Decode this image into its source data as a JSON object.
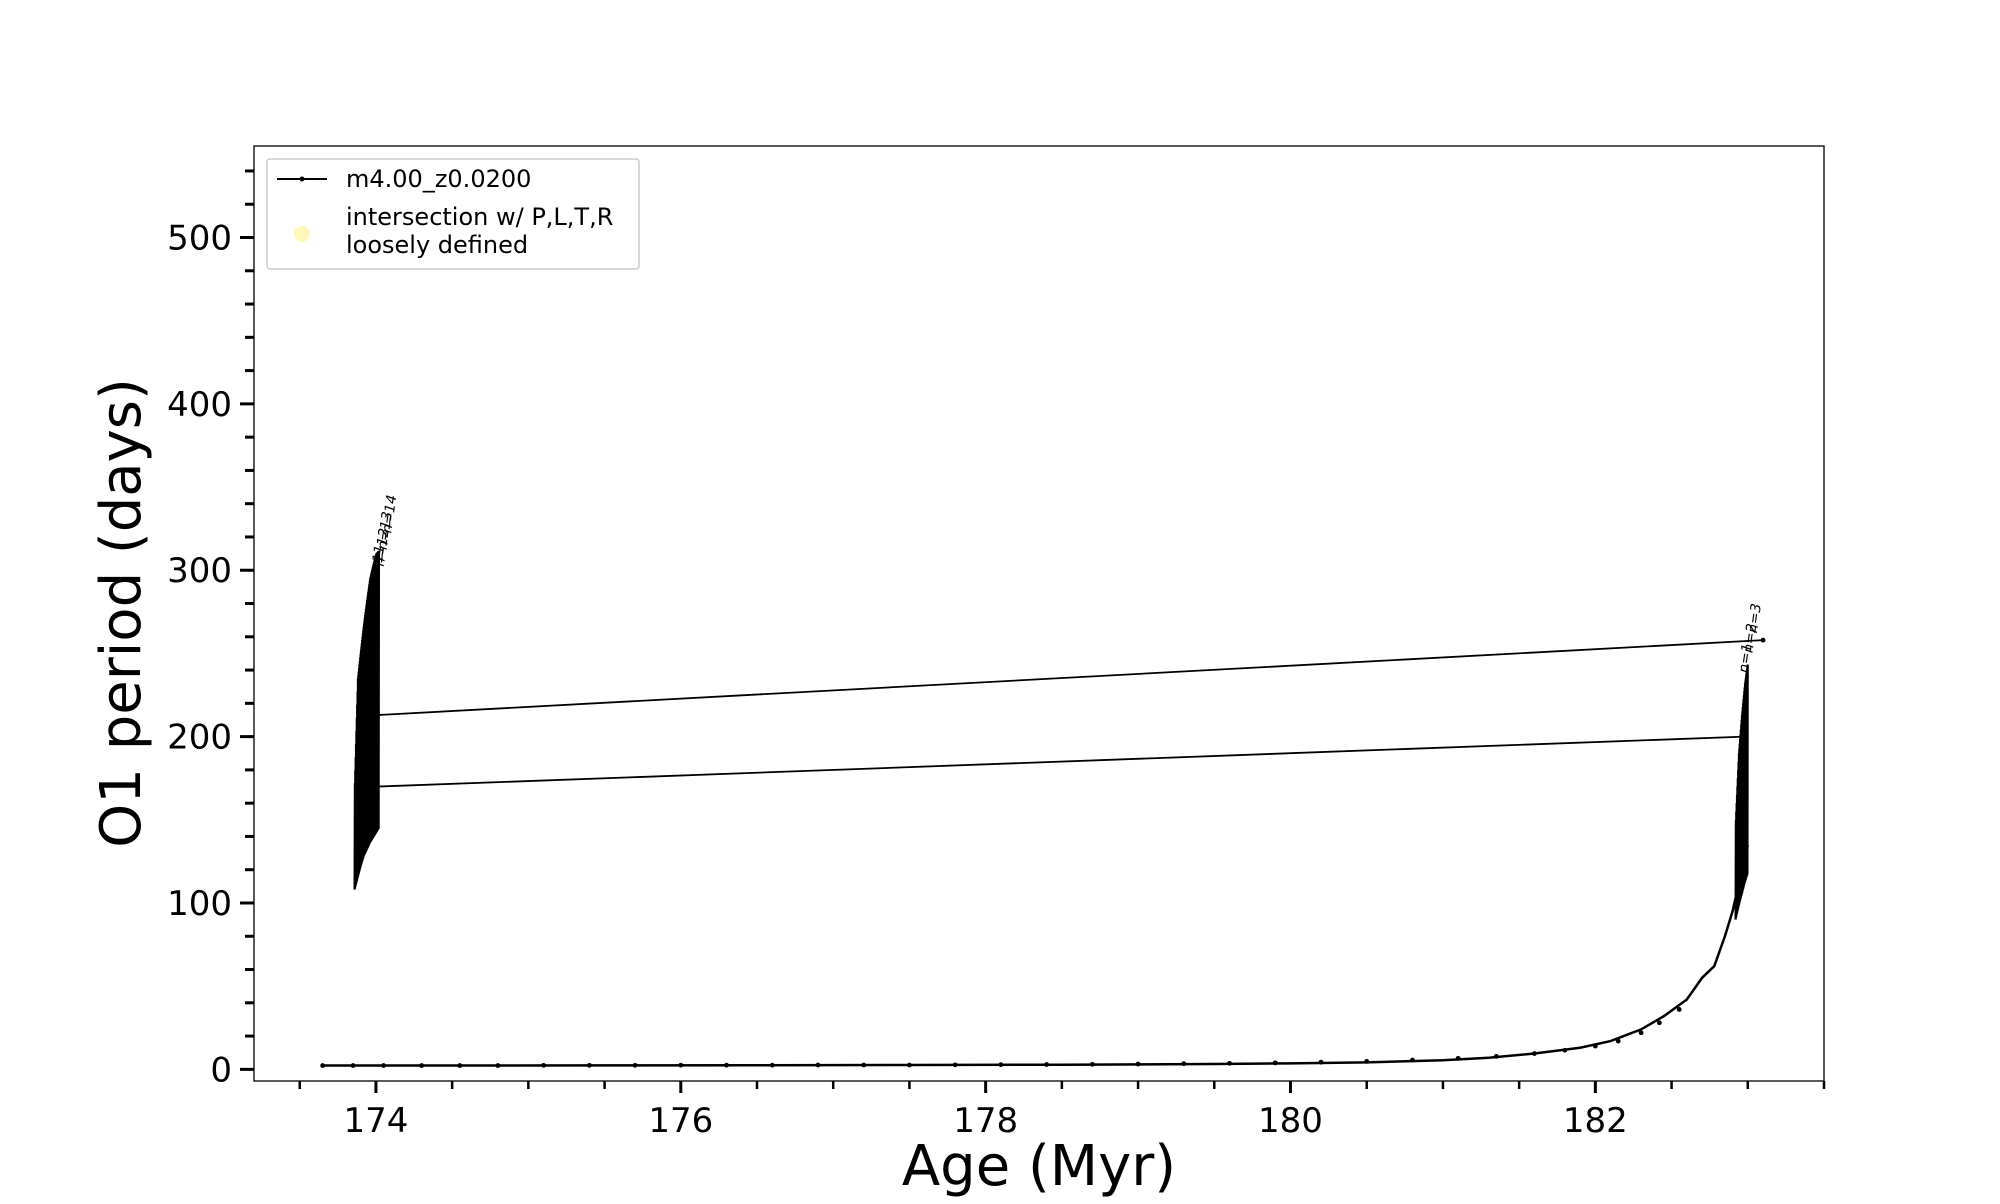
{
  "chart_data": {
    "type": "line",
    "title": "",
    "xlabel": "Age (Myr)",
    "ylabel": "O1 period (days)",
    "xlim": [
      173.2,
      183.5
    ],
    "ylim": [
      -7,
      555
    ],
    "xticks": {
      "major": [
        174,
        176,
        178,
        180,
        182
      ],
      "labels": [
        "174",
        "176",
        "178",
        "180",
        "182"
      ],
      "minor_step": 0.5
    },
    "yticks": {
      "major": [
        0,
        100,
        200,
        300,
        400,
        500
      ],
      "labels": [
        "0",
        "100",
        "200",
        "300",
        "400",
        "500"
      ],
      "minor_step": 20
    },
    "grid": false,
    "legend": {
      "placement": "upper left",
      "entries": [
        {
          "label": "m4.00_z0.0200",
          "marker": "line-dot"
        },
        {
          "label_lines": [
            "intersection w/ P,L,T,R",
            "loosely defined"
          ],
          "marker": "circle"
        }
      ]
    },
    "series": [
      {
        "name": "m4.00_z0.0200",
        "color": "#000000",
        "x": [
          173.65,
          174.5,
          175.5,
          176.5,
          177.5,
          178.5,
          179.5,
          180.0,
          180.5,
          181.0,
          181.3,
          181.6,
          181.9,
          182.1,
          182.3,
          182.45,
          182.6,
          182.7,
          182.78,
          182.85,
          182.9,
          182.95,
          183.0
        ],
        "y": [
          2.3,
          2.3,
          2.4,
          2.5,
          2.6,
          2.8,
          3.2,
          3.6,
          4.2,
          5.5,
          7.0,
          9.5,
          13,
          17,
          24,
          32,
          42,
          55,
          62,
          80,
          95,
          115,
          135
        ]
      },
      {
        "name": "oscillation-band-left",
        "x": [
          173.86,
          173.88,
          173.9,
          173.92,
          173.94,
          173.96,
          173.98,
          174.0,
          174.02
        ],
        "ylow": [
          108,
          115,
          122,
          128,
          132,
          136,
          139,
          142,
          145
        ],
        "yhigh": [
          172,
          235,
          252,
          268,
          282,
          295,
          303,
          310,
          312
        ]
      },
      {
        "name": "oscillation-band-right",
        "x": [
          182.92,
          182.94,
          182.96,
          182.98,
          183.0
        ],
        "ylow": [
          90,
          98,
          105,
          112,
          118
        ],
        "yhigh": [
          150,
          190,
          213,
          232,
          245
        ]
      },
      {
        "name": "connector-upper",
        "x": [
          174.02,
          183.1
        ],
        "y": [
          213,
          258
        ]
      },
      {
        "name": "connector-lower",
        "x": [
          174.02,
          182.98
        ],
        "y": [
          170,
          200
        ]
      }
    ],
    "marker_points": {
      "x": [
        173.65,
        173.85,
        174.05,
        174.3,
        174.55,
        174.8,
        175.1,
        175.4,
        175.7,
        176.0,
        176.3,
        176.6,
        176.9,
        177.2,
        177.5,
        177.8,
        178.1,
        178.4,
        178.7,
        179.0,
        179.3,
        179.6,
        179.9,
        180.2,
        180.5,
        180.8,
        181.1,
        181.35,
        181.6,
        181.8,
        182.0,
        182.15,
        182.3,
        182.42,
        182.55,
        183.1
      ],
      "y": [
        2.3,
        2.3,
        2.3,
        2.3,
        2.3,
        2.3,
        2.4,
        2.4,
        2.4,
        2.5,
        2.5,
        2.5,
        2.6,
        2.6,
        2.6,
        2.7,
        2.8,
        2.9,
        3.0,
        3.2,
        3.4,
        3.6,
        3.9,
        4.3,
        4.8,
        5.6,
        6.6,
        7.8,
        9.5,
        11.5,
        14,
        17,
        22,
        28,
        36,
        258
      ]
    },
    "annotations": [
      {
        "text": "n=14",
        "x": 174.1,
        "y": 322
      },
      {
        "text": "n=13",
        "x": 174.07,
        "y": 312
      },
      {
        "text": "n=12",
        "x": 174.05,
        "y": 302
      },
      {
        "text": "n=11",
        "x": 174.02,
        "y": 292
      },
      {
        "text": "n=3",
        "x": 183.06,
        "y": 262
      },
      {
        "text": "n=2",
        "x": 183.03,
        "y": 250
      },
      {
        "text": "n=1",
        "x": 183.0,
        "y": 238
      }
    ]
  }
}
